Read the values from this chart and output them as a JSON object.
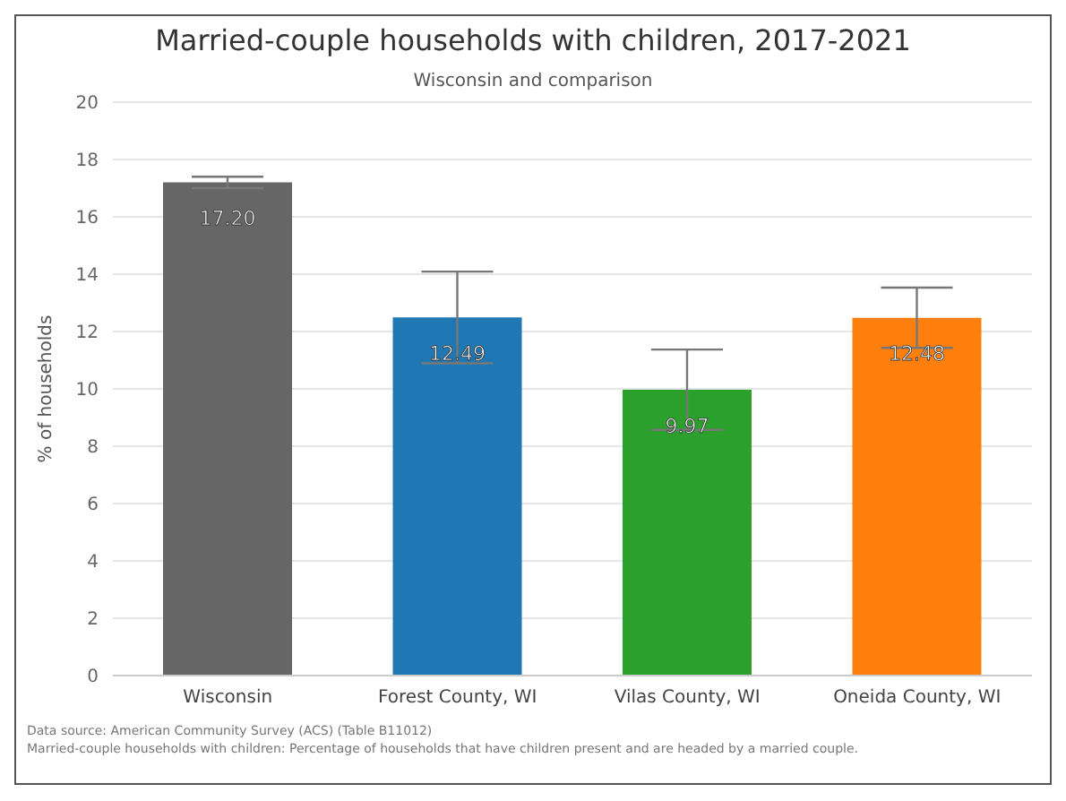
{
  "chart_data": {
    "type": "bar",
    "title": "Married-couple households with children, 2017-2021",
    "subtitle": "Wisconsin and comparison",
    "ylabel": "% of households",
    "categories": [
      "Wisconsin",
      "Forest County, WI",
      "Vilas County, WI",
      "Oneida County, WI"
    ],
    "values": [
      17.2,
      12.49,
      9.97,
      12.48
    ],
    "colors": [
      "#666666",
      "#1f77b4",
      "#2ca02c",
      "#ff7f0e"
    ],
    "errors": [
      0.2,
      1.6,
      1.4,
      1.05
    ],
    "value_labels": [
      "17.20",
      "12.49",
      "9.97",
      "12.48"
    ],
    "ylim": [
      0,
      20
    ],
    "yticks": [
      0,
      2,
      4,
      6,
      8,
      10,
      12,
      14,
      16,
      18,
      20
    ],
    "grid": "y",
    "annotations": [
      "Data source: American Community Survey (ACS) (Table B11012)",
      "Married-couple households with children: Percentage of households that have children present and are headed by a married couple."
    ]
  }
}
